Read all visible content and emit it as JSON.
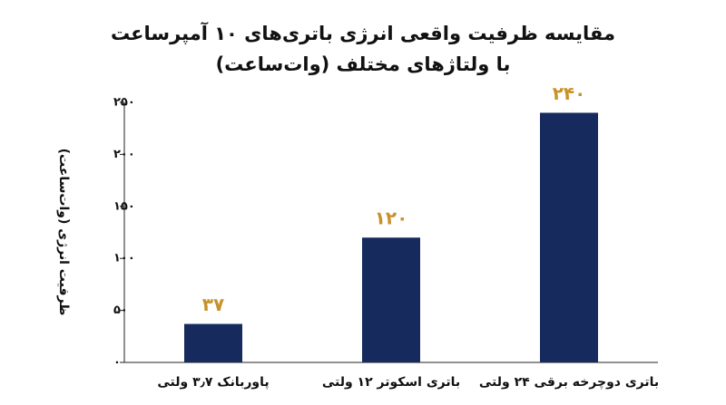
{
  "chart_data": {
    "type": "bar",
    "title": [
      "مقایسه ظرفیت واقعی انرژی باتری‌های ۱۰ آمپرساعت",
      "با ولتاژهای مختلف (وات‌ساعت)"
    ],
    "y_label": "ظرفیت انرژی (وات‌ساعت)",
    "categories": [
      "پاوربانک ۳٫۷ ولتی",
      "باتری اسکوتر ۱۲ ولتی",
      "باتری دوچرخه برقی ۲۴ ولتی"
    ],
    "values": [
      37,
      120,
      240
    ],
    "value_labels": [
      "۳۷",
      "۱۲۰",
      "۲۴۰"
    ],
    "color": "#172a5e",
    "value_label_color": "#c8922a",
    "ylim": [
      0,
      250
    ],
    "yticks": [
      {
        "value": 0,
        "label": "۰"
      },
      {
        "value": 50,
        "label": "۵۰"
      },
      {
        "value": 100,
        "label": "۱۰۰"
      },
      {
        "value": 150,
        "label": "۱۵۰"
      },
      {
        "value": 200,
        "label": "۲۰۰"
      },
      {
        "value": 250,
        "label": "۲۵۰"
      }
    ],
    "grid": false
  }
}
